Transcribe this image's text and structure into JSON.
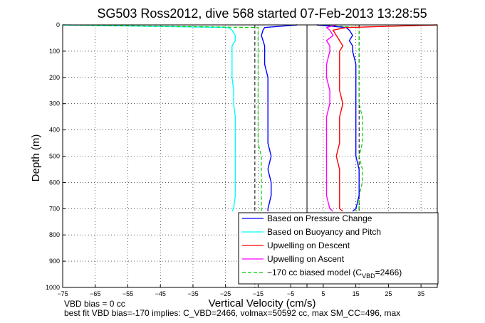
{
  "chart_data": {
    "type": "line",
    "title": "SG503 Ross2012, dive 568 started 07-Feb-2013 13:28:55",
    "xlabel": "Vertical Velocity (cm/s)",
    "ylabel": "Depth (m)",
    "xlim": [
      -75,
      40
    ],
    "ylim": [
      0,
      1000
    ],
    "y_reversed": true,
    "xticks": [
      -75,
      -65,
      -55,
      -45,
      -35,
      -25,
      -15,
      -5,
      5,
      15,
      25,
      35
    ],
    "yticks": [
      0,
      100,
      200,
      300,
      400,
      500,
      600,
      700,
      800,
      900,
      1000
    ],
    "grid": true,
    "legend_position": "bottom-right",
    "depth": [
      0,
      10,
      20,
      40,
      60,
      80,
      100,
      150,
      200,
      250,
      300,
      350,
      400,
      450,
      500,
      550,
      600,
      650,
      700,
      710
    ],
    "series": [
      {
        "name": "Based on Pressure Change",
        "color": "#0000ff",
        "style": "solid",
        "x": [
          -3,
          -13,
          -13.5,
          -14,
          -13.5,
          -13,
          -13,
          -13,
          -12,
          -12,
          -12,
          -12,
          -12,
          -12,
          -11,
          -12,
          -11,
          -11,
          -12,
          -12
        ]
      },
      {
        "name": "Based on Buoyancy and Pitch",
        "color": "#00ffff",
        "style": "solid",
        "x": [
          -75,
          -24,
          -23,
          -22,
          -22,
          -23,
          -23,
          -23,
          -23,
          -22.5,
          -22.5,
          -22,
          -22,
          -22,
          -22,
          -22,
          -22,
          -22,
          -22.5,
          -23
        ]
      },
      {
        "name": "Upwelling on Descent",
        "color": "#ff0000",
        "style": "solid",
        "x": [
          40,
          12,
          8,
          9,
          10,
          11,
          10,
          10,
          10,
          10,
          11,
          10,
          10,
          10,
          9,
          10,
          10,
          10,
          10,
          11
        ]
      },
      {
        "name": "Upwelling on Ascent",
        "color": "#ff00ff",
        "style": "solid",
        "x": [
          9,
          6,
          7,
          8,
          6,
          7,
          7,
          6,
          6,
          7,
          7,
          6,
          6,
          6,
          6,
          6,
          6,
          6,
          7,
          8
        ]
      },
      {
        "name": "−170 cc biased model (C_VBD=2466)",
        "color": "#00cc00",
        "style": "dashed",
        "x": [
          -75,
          -15,
          -15,
          -15,
          -15,
          -15,
          -15,
          -15,
          -15,
          -15,
          -15,
          -15,
          -15,
          -15,
          -14,
          -14,
          -14,
          -14,
          -14,
          -14
        ]
      },
      {
        "name": "ascent pressure change",
        "color": "#0000ff",
        "style": "solid",
        "legend": false,
        "x": [
          3,
          12,
          13,
          14,
          13,
          14,
          14,
          15,
          15,
          15,
          15,
          15,
          15,
          15,
          15,
          16,
          16,
          16,
          15,
          14
        ]
      },
      {
        "name": "ascent model",
        "color": "#00cc00",
        "style": "dashed",
        "legend": false,
        "x": [
          3,
          16,
          16,
          16,
          16,
          16,
          16,
          16,
          16,
          16,
          16,
          17,
          17,
          17,
          16,
          17,
          17,
          16,
          16,
          15
        ]
      }
    ],
    "ref_lines_x": [
      {
        "x": -16,
        "style": "dashed",
        "color": "#000000"
      },
      {
        "x": 0,
        "style": "solid",
        "color": "#000000"
      },
      {
        "x": 16,
        "style": "dashed",
        "color": "#000000"
      }
    ],
    "legend": {
      "entries": [
        {
          "label": "Based on Pressure Change",
          "color": "#0000ff",
          "style": "solid"
        },
        {
          "label": "Based on Buoyancy and Pitch",
          "color": "#00ffff",
          "style": "solid"
        },
        {
          "label": "Upwelling on Descent",
          "color": "#ff0000",
          "style": "solid"
        },
        {
          "label": "Upwelling on Ascent",
          "color": "#ff00ff",
          "style": "solid"
        },
        {
          "label": "−170 cc biased model (C",
          "sub": "VBD",
          "suffix": "=2466)",
          "color": "#00cc00",
          "style": "dashed"
        }
      ]
    },
    "footnotes": [
      "VBD bias = 0 cc",
      "best fit VBD bias=-170 implies: C_VBD=2466, volmax=50592 cc, max SM_CC=496, max"
    ]
  }
}
